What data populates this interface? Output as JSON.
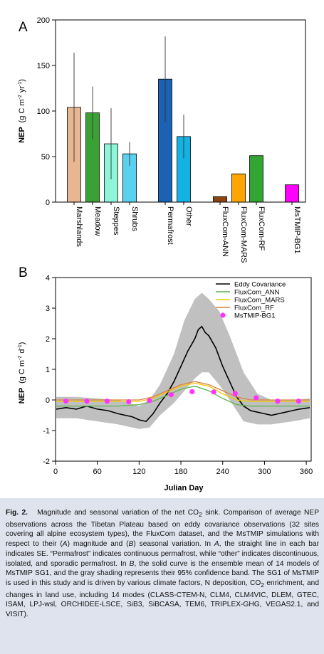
{
  "chart_data": [
    {
      "type": "bar",
      "panel_label": "A",
      "ylabel_prefix": "NEP",
      "ylabel_units": "(g C m",
      "ylabel_exp1": "-2",
      "ylabel_mid": " yr",
      "ylabel_exp2": "-1",
      "ylabel_close": ")",
      "ylim": [
        0,
        200
      ],
      "yticks": [
        "0",
        "50",
        "100",
        "150",
        "200"
      ],
      "categories": [
        "Marshlands",
        "Meadow",
        "Steppes",
        "Shrubs",
        "Permafrost",
        "Other",
        "FluxCom-ANN",
        "FluxCom-MARS",
        "FluxCom-RF",
        "MsTMIP-BG1"
      ],
      "values": [
        104,
        98,
        64,
        53,
        135,
        72,
        6,
        31,
        51,
        19
      ],
      "errors": [
        60,
        29,
        39,
        13,
        47,
        24,
        null,
        null,
        null,
        null
      ],
      "colors": [
        "#e8b692",
        "#3aa235",
        "#8ff5d8",
        "#5ad1ee",
        "#1b62b4",
        "#13b2e2",
        "#8b4513",
        "#ffa500",
        "#32a532",
        "#ff00ff"
      ]
    },
    {
      "type": "line",
      "panel_label": "B",
      "xlabel": "Julian Day",
      "ylabel_prefix": "NEP",
      "ylabel_units": "(g C m",
      "ylabel_exp1": "-2",
      "ylabel_mid": " d",
      "ylabel_exp2": "-1",
      "ylabel_close": ")",
      "xlim": [
        0,
        365
      ],
      "ylim": [
        -2,
        4
      ],
      "xticks": [
        "0",
        "60",
        "120",
        "180",
        "240",
        "300",
        "360"
      ],
      "yticks": [
        "-2",
        "-1",
        "0",
        "1",
        "2",
        "3",
        "4"
      ],
      "legend_position": "top-right",
      "series": [
        {
          "name": "Eddy Covariance",
          "color": "#000000",
          "x": [
            1,
            15,
            30,
            45,
            60,
            75,
            90,
            100,
            110,
            120,
            130,
            140,
            150,
            160,
            170,
            180,
            190,
            200,
            205,
            210,
            215,
            220,
            230,
            240,
            250,
            260,
            270,
            280,
            290,
            300,
            310,
            320,
            330,
            340,
            350,
            365
          ],
          "y": [
            -0.3,
            -0.25,
            -0.3,
            -0.2,
            -0.3,
            -0.35,
            -0.45,
            -0.5,
            -0.55,
            -0.65,
            -0.7,
            -0.45,
            -0.1,
            0.2,
            0.6,
            1.1,
            1.6,
            2.0,
            2.3,
            2.4,
            2.2,
            2.1,
            1.7,
            1.1,
            0.6,
            0.1,
            -0.2,
            -0.35,
            -0.4,
            -0.45,
            -0.5,
            -0.45,
            -0.4,
            -0.35,
            -0.3,
            -0.25
          ]
        },
        {
          "name": "FluxCom_ANN",
          "color": "#5bb450",
          "x": [
            1,
            30,
            60,
            90,
            120,
            140,
            160,
            180,
            200,
            220,
            240,
            260,
            280,
            300,
            330,
            365
          ],
          "y": [
            -0.2,
            -0.2,
            -0.2,
            -0.2,
            -0.15,
            -0.05,
            0.15,
            0.35,
            0.45,
            0.3,
            0.05,
            -0.15,
            -0.2,
            -0.2,
            -0.2,
            -0.2
          ]
        },
        {
          "name": "FluxCom_MARS",
          "color": "#f3c800",
          "x": [
            1,
            30,
            60,
            90,
            120,
            140,
            160,
            180,
            200,
            220,
            240,
            260,
            280,
            300,
            330,
            365
          ],
          "y": [
            -0.05,
            -0.05,
            -0.05,
            -0.05,
            -0.05,
            0.05,
            0.25,
            0.45,
            0.55,
            0.45,
            0.2,
            0.0,
            -0.05,
            -0.05,
            -0.05,
            -0.05
          ]
        },
        {
          "name": "FluxCom_RF",
          "color": "#d9823b",
          "x": [
            1,
            30,
            60,
            90,
            120,
            140,
            160,
            180,
            200,
            220,
            240,
            260,
            280,
            300,
            330,
            365
          ],
          "y": [
            0.0,
            0.0,
            0.0,
            0.0,
            0.0,
            0.1,
            0.3,
            0.5,
            0.6,
            0.5,
            0.3,
            0.1,
            0.0,
            0.0,
            0.0,
            0.0
          ]
        },
        {
          "name": "MsTMIP-BG1",
          "color": "#ff33ff",
          "marker": "circle",
          "x": [
            15,
            45,
            74,
            105,
            135,
            166,
            196,
            227,
            258,
            288,
            319,
            349
          ],
          "y": [
            -0.04,
            -0.04,
            -0.04,
            -0.06,
            -0.02,
            0.17,
            0.27,
            0.26,
            0.21,
            0.07,
            -0.04,
            -0.04
          ]
        }
      ],
      "confidence_band": {
        "color": "#c0c0c0",
        "x": [
          1,
          30,
          60,
          90,
          120,
          135,
          150,
          170,
          185,
          200,
          210,
          220,
          235,
          250,
          270,
          290,
          310,
          340,
          365
        ],
        "lower": [
          -0.6,
          -0.6,
          -0.7,
          -0.8,
          -0.95,
          -0.9,
          -0.5,
          -0.1,
          0.3,
          0.7,
          0.9,
          0.9,
          0.5,
          0.0,
          -0.7,
          -0.8,
          -0.8,
          -0.7,
          -0.6
        ],
        "upper": [
          0.1,
          0.1,
          0.05,
          0.0,
          -0.2,
          0.0,
          0.5,
          1.5,
          2.6,
          3.3,
          3.5,
          3.3,
          2.9,
          2.1,
          0.9,
          0.2,
          0.0,
          0.0,
          0.05
        ]
      }
    }
  ],
  "caption": {
    "fig_label": "Fig. 2.",
    "part1": "Magnitude and seasonal variation of the net CO",
    "sub2": "2",
    "part2": " sink. Comparison of average NEP observations across the Tibetan Plateau based on eddy covariance observations (32 sites covering all alpine ecosystem types), the FluxCom dataset, and the MsTMIP simulations with respect to their (",
    "ital_a1": "A",
    "part3": ") magnitude and (",
    "ital_b1": "B",
    "part4": ") seasonal variation. In ",
    "ital_a2": "A",
    "part5": ", the straight line in each bar indicates SE. “Permafrost” indicates continuous permafrost, while “other” indicates discontinuous, isolated, and sporadic permafrost. In ",
    "ital_b2": "B",
    "part6": ", the solid curve is the ensemble mean of 14 models of MsTMIP SG1, and the gray shading represents their 95% confidence band. The SG1 of MsTMIP is used in this study and is driven by various climate factors, N deposition, CO",
    "sub2b": "2",
    "part7": " enrichment, and changes in land use, including 14 modes (CLASS-CTEM-N, CLM4, CLM4VIC, DLEM, GTEC, ISAM, LPJ-wsl, ORCHIDEE-LSCE, SiB3, SiBCASA, TEM6, TRIPLEX-GHG, VEGAS2.1, and VISIT)."
  }
}
